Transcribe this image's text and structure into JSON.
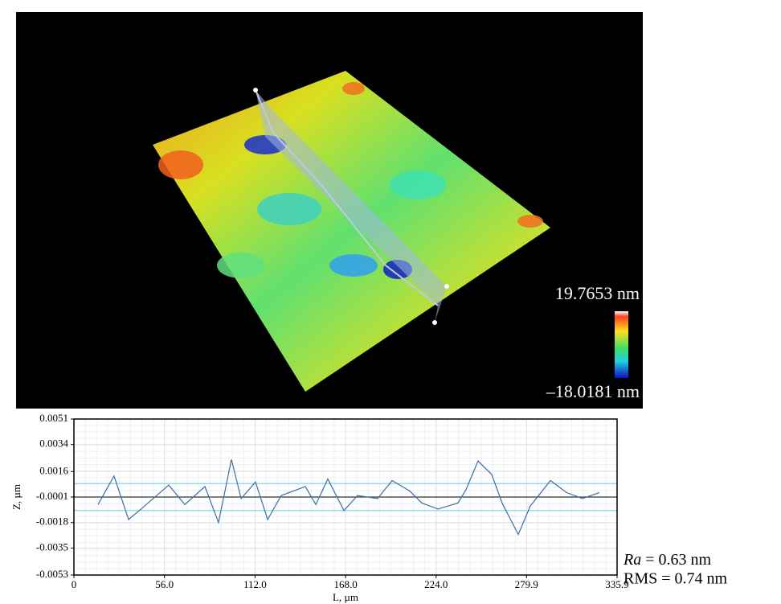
{
  "surface": {
    "max_label": "19.7653 nm",
    "min_label": "–18.0181 nm"
  },
  "stats": {
    "ra_name": "Ra",
    "ra_text": "= 0.63 nm",
    "rms_text": "RMS =  0.74 nm"
  },
  "chart_data": {
    "type": "line",
    "xlabel": "L, µm",
    "ylabel": "Z, µm",
    "color": "#3b6ea5",
    "x": [
      14.9,
      24.8,
      33.8,
      43.7,
      58.6,
      68.6,
      81.0,
      89.4,
      97.4,
      103.4,
      112.3,
      119.8,
      128.2,
      143.1,
      149.6,
      157.0,
      167.0,
      175.4,
      187.8,
      196.8,
      207.7,
      215.2,
      225.1,
      237.5,
      242.5,
      249.9,
      258.4,
      264.8,
      274.8,
      282.2,
      294.7,
      304.6,
      314.5,
      325.0
    ],
    "values": [
      -0.0006,
      0.0013,
      -0.0016,
      -0.0007,
      0.0007,
      -0.0006,
      0.0006,
      -0.0018,
      0.0024,
      -0.0002,
      0.0009,
      -0.0016,
      0.0,
      0.0006,
      -0.0006,
      0.0011,
      -0.001,
      0.0,
      -0.0002,
      0.001,
      0.0003,
      -0.0005,
      -0.0009,
      -0.0005,
      0.0004,
      0.0023,
      0.0014,
      -0.0005,
      -0.0026,
      -0.0007,
      0.001,
      0.0002,
      -0.0002,
      0.0002
    ],
    "hlines": [
      {
        "value": -0.0001,
        "color": "#333333"
      },
      {
        "value": 0.0008,
        "color": "#7fd3e8"
      },
      {
        "value": -0.001,
        "color": "#7fd3e8"
      }
    ],
    "xlim": [
      0,
      335.9
    ],
    "xticks": [
      0,
      {
        "value": 56,
        "label": "56.0"
      },
      {
        "value": 112,
        "label": "112.0"
      },
      {
        "value": 168,
        "label": "168.0"
      },
      {
        "value": 224,
        "label": "224.0"
      },
      279.9,
      335.9
    ],
    "ylim": [
      -0.0053,
      0.0051
    ],
    "yticks": [
      0.0051,
      0.0034,
      0.0016,
      -0.0001,
      -0.0018,
      -0.0035,
      -0.0053
    ],
    "grid": true
  }
}
